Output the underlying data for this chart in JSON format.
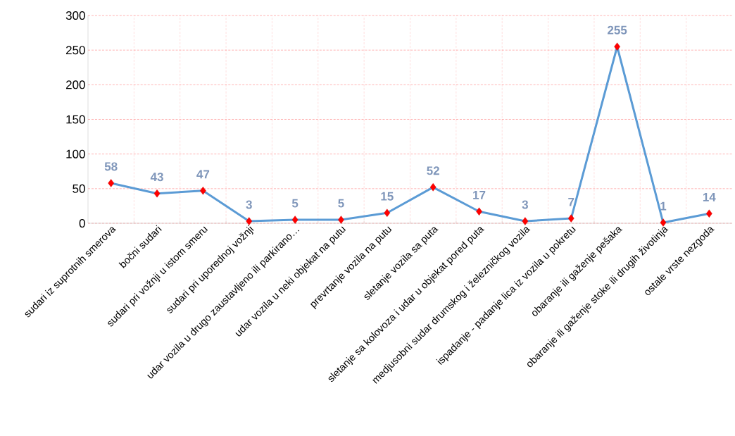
{
  "chart_data": {
    "type": "line",
    "categories": [
      "sudari iz suprotnih smerova",
      "bočni sudari",
      "sudari pri vožnji u istom smeru",
      "sudari pri uporednoj vožnji",
      "udar vozila u drugo zaustavljeno ili parkirano…",
      "udar vozila u neki objekat na putu",
      "prevrtanje vozila na putu",
      "sletanje vozila sa puta",
      "sletanje sa kolovoza i udar u objekat pored puta",
      "medjusobni sudar drumskog i železničkog vozila",
      "ispadanje - padanje lica iz vozila u pokretu",
      "obaranje ili gaženje pešaka",
      "obaranje ili gaženje stoke ili drugih životinja",
      "ostale vrste nezgoda"
    ],
    "values": [
      58,
      43,
      47,
      3,
      5,
      5,
      15,
      52,
      17,
      3,
      7,
      255,
      1,
      14
    ],
    "color": "#5b9bd5",
    "ylim": [
      0,
      300
    ],
    "yticks": [
      0,
      50,
      100,
      150,
      200,
      250,
      300
    ],
    "grid": true,
    "marker": "diamond",
    "line_style": "solid",
    "data_labels": true
  }
}
